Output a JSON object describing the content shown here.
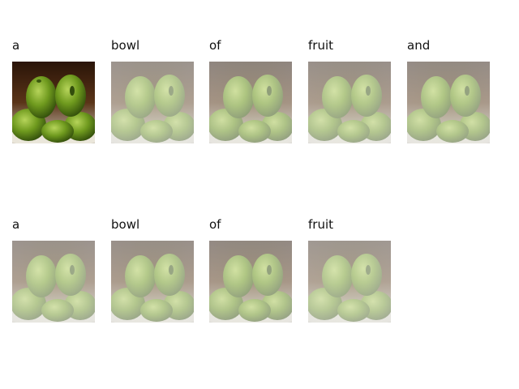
{
  "rows": [
    {
      "panels": [
        {
          "word": "a",
          "attention": 0.0
        },
        {
          "word": "bowl",
          "attention": 0.62
        },
        {
          "word": "of",
          "attention": 0.55
        },
        {
          "word": "fruit",
          "attention": 0.6
        },
        {
          "word": "and",
          "attention": 0.58
        }
      ]
    },
    {
      "panels": [
        {
          "word": "a",
          "attention": 0.62
        },
        {
          "word": "bowl",
          "attention": 0.6
        },
        {
          "word": "of",
          "attention": 0.57
        },
        {
          "word": "fruit",
          "attention": 0.64
        }
      ]
    }
  ]
}
